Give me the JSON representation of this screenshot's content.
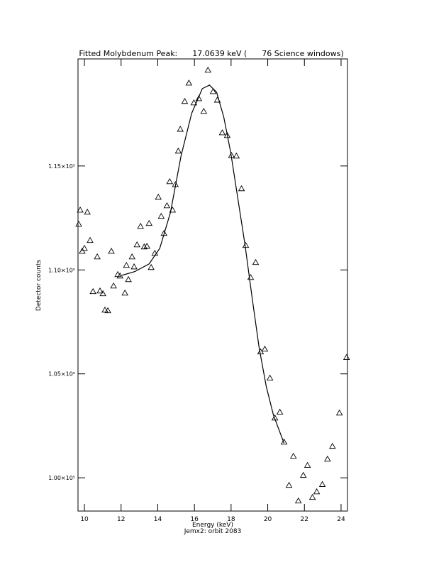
{
  "chart_data": {
    "type": "scatter",
    "title": "Fitted Molybdenum Peak:      17.0639 keV (      76 Science windows)",
    "x_label": "Energy (keV)",
    "subtitle": "Jemx2: orbit 2083",
    "y_label": "Detector counts",
    "xlim": [
      9.65,
      24.35
    ],
    "ylim": [
      98400,
      120150
    ],
    "xticks": [
      10,
      12,
      14,
      16,
      18,
      20,
      22,
      24
    ],
    "yticks": [
      {
        "value": 100000,
        "label": "1.00×10⁵"
      },
      {
        "value": 105000,
        "label": "1.05×10⁵"
      },
      {
        "value": 110000,
        "label": "1.10×10⁵"
      },
      {
        "value": 115000,
        "label": "1.15×10⁵"
      }
    ],
    "color": "#000000",
    "series": [
      {
        "marker": "triangle",
        "x": [
          9.69,
          9.77,
          9.88,
          10.0,
          10.16,
          10.31,
          10.47,
          10.7,
          10.85,
          11.01,
          11.12,
          11.28,
          11.47,
          11.59,
          11.82,
          11.94,
          12.21,
          12.29,
          12.4,
          12.6,
          12.71,
          12.87,
          13.06,
          13.26,
          13.41,
          13.53,
          13.64,
          13.84,
          14.03,
          14.19,
          14.34,
          14.5,
          14.65,
          14.81,
          14.96,
          15.12,
          15.23,
          15.47,
          15.7,
          15.97,
          16.24,
          16.51,
          16.74,
          17.02,
          17.25,
          17.52,
          17.79,
          18.02,
          18.29,
          18.57,
          18.8,
          19.07,
          19.34,
          19.61,
          19.84,
          20.12,
          20.39,
          20.66,
          20.89,
          21.16,
          21.4,
          21.67,
          21.94,
          22.17,
          22.44,
          22.67,
          22.98,
          23.26,
          23.53,
          23.91,
          24.3
        ],
        "values": [
          112200,
          112880,
          110900,
          111040,
          112780,
          111420,
          108960,
          110630,
          108990,
          108860,
          108070,
          108040,
          110900,
          109230,
          109780,
          109710,
          108890,
          110220,
          109540,
          110630,
          110150,
          111210,
          112100,
          111110,
          111140,
          112240,
          110120,
          110800,
          113500,
          112580,
          111760,
          113090,
          114250,
          112880,
          114110,
          115720,
          116770,
          118110,
          118990,
          118040,
          118240,
          117630,
          119610,
          118580,
          118170,
          116600,
          116470,
          115510,
          115480,
          113910,
          111180,
          109640,
          110360,
          106060,
          106190,
          104800,
          102880,
          103160,
          101720,
          99640,
          101040,
          98890,
          100120,
          100600,
          99060,
          99330,
          99680,
          100900,
          101520,
          103120,
          105790
        ]
      },
      {
        "marker": "line",
        "x": [
          12.05,
          12.75,
          13.53,
          14.11,
          14.69,
          15.27,
          15.85,
          16.43,
          16.82,
          17.21,
          17.6,
          17.98,
          18.37,
          18.76,
          19.15,
          19.53,
          19.92,
          20.31,
          20.89
        ],
        "values": [
          109740,
          109920,
          110290,
          111040,
          112750,
          115480,
          117530,
          118720,
          118890,
          118550,
          117360,
          115650,
          113430,
          111210,
          108650,
          106260,
          104390,
          103020,
          101660
        ]
      }
    ]
  }
}
